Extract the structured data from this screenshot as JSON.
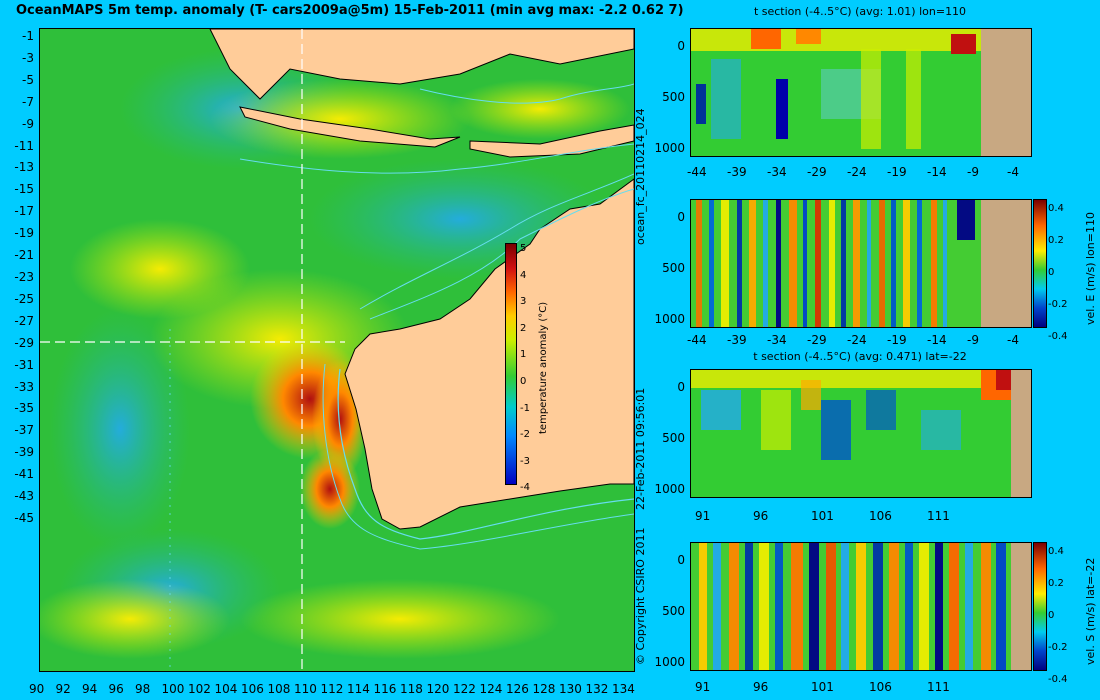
{
  "map": {
    "title": "OceanMAPS 5m temp. anomaly (T- cars2009a@5m) 15-Feb-2011 (min avg max: -2.2 0.62 7)",
    "lat_ticks": [
      "-1",
      "-3",
      "-5",
      "-7",
      "-9",
      "-11",
      "-13",
      "-15",
      "-17",
      "-19",
      "-21",
      "-23",
      "-25",
      "-27",
      "-29",
      "-31",
      "-33",
      "-35",
      "-37",
      "-39",
      "-41",
      "-43",
      "-45"
    ],
    "lon_ticks": [
      "90",
      "92",
      "94",
      "96",
      "98",
      "100",
      "102",
      "104",
      "106",
      "108",
      "110",
      "112",
      "114",
      "116",
      "118",
      "120",
      "122",
      "124",
      "126",
      "128",
      "130",
      "132",
      "134"
    ],
    "colorbar": {
      "label": "temperature anomaly (°C)",
      "ticks": [
        "5",
        "4",
        "3",
        "2",
        "1",
        "0",
        "-1",
        "-2",
        "-3",
        "-4"
      ],
      "range": [
        -4,
        5
      ]
    },
    "colors": {
      "ocean_base": "#2fbf3a",
      "land": "#ffcc99",
      "contour": "#66ddee",
      "section_line": "#ffffff"
    }
  },
  "side_labels": {
    "run_id": "ocean_fc_20110214_024",
    "timestamp": "22-Feb-2011 09:56:01",
    "copyright": "© Copyright CSIRO 2011"
  },
  "sections": [
    {
      "title": "t section (-4..5°C) (avg: 1.01) lon=110",
      "y_ticks": [
        "0",
        "500",
        "1000"
      ],
      "x_ticks": [
        "-44",
        "-39",
        "-34",
        "-29",
        "-24",
        "-19",
        "-14",
        "-9",
        "-4"
      ]
    },
    {
      "title": "",
      "y_ticks": [
        "0",
        "500",
        "1000"
      ],
      "x_ticks": [
        "-44",
        "-39",
        "-34",
        "-29",
        "-24",
        "-19",
        "-14",
        "-9",
        "-4"
      ],
      "colorbar": {
        "label": "vel. E (m/s) lon=110",
        "ticks": [
          "0.4",
          "0.2",
          "0",
          "-0.2",
          "-0.4"
        ]
      }
    },
    {
      "title": "t section (-4..5°C) (avg: 0.471) lat=-22",
      "y_ticks": [
        "0",
        "500",
        "1000"
      ],
      "x_ticks": [
        "91",
        "96",
        "101",
        "106",
        "111"
      ]
    },
    {
      "title": "",
      "y_ticks": [
        "0",
        "500",
        "1000"
      ],
      "x_ticks": [
        "91",
        "96",
        "101",
        "106",
        "111"
      ],
      "colorbar": {
        "label": "vel. S (m/s) lat=-22",
        "ticks": [
          "0.4",
          "0.2",
          "0",
          "-0.2",
          "-0.4"
        ]
      }
    }
  ]
}
